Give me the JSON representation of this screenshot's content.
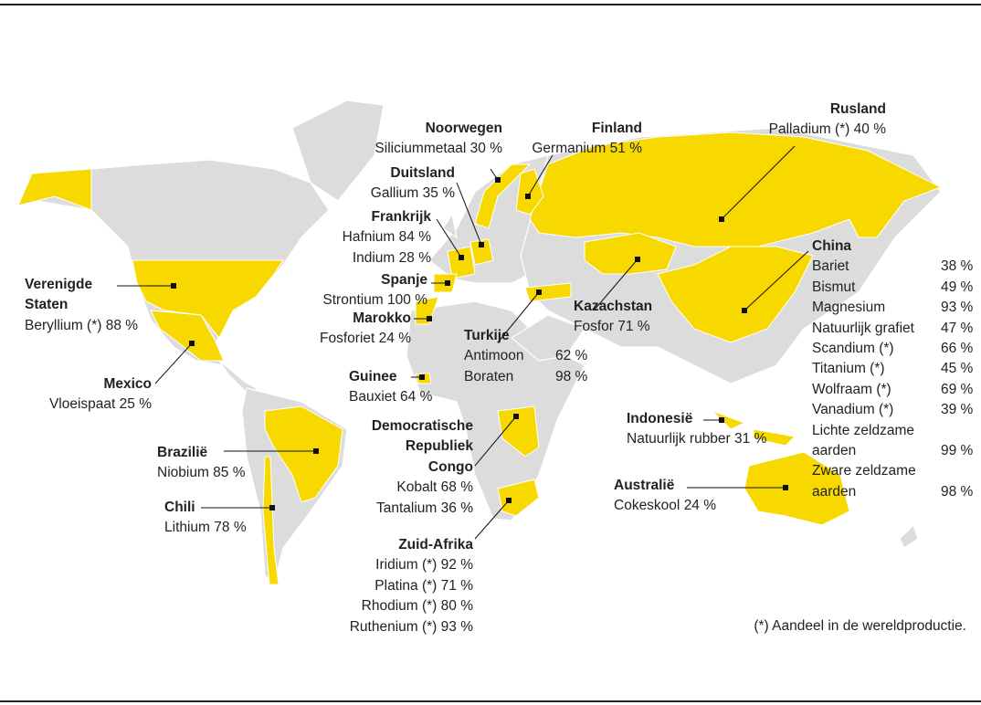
{
  "countries": [
    {
      "name": "Noorwegen",
      "items": [
        {
          "material": "Siliciummetaal",
          "share": "30 %"
        }
      ]
    },
    {
      "name": "Finland",
      "items": [
        {
          "material": "Germanium",
          "share": "51 %"
        }
      ]
    },
    {
      "name": "Rusland",
      "items": [
        {
          "material": "Palladium (*)",
          "share": "40 %"
        }
      ]
    },
    {
      "name": "Duitsland",
      "items": [
        {
          "material": "Gallium",
          "share": "35 %"
        }
      ]
    },
    {
      "name": "Frankrijk",
      "items": [
        {
          "material": "Hafnium",
          "share": "84 %"
        },
        {
          "material": "Indium",
          "share": "28 %"
        }
      ]
    },
    {
      "name": "Spanje",
      "items": [
        {
          "material": "Strontium",
          "share": "100 %"
        }
      ]
    },
    {
      "name": "Marokko",
      "items": [
        {
          "material": "Fosforiet",
          "share": "24 %"
        }
      ]
    },
    {
      "name": "Verenigde Staten",
      "items": [
        {
          "material": "Beryllium (*)",
          "share": "88 %"
        }
      ]
    },
    {
      "name": "Mexico",
      "items": [
        {
          "material": "Vloeispaat",
          "share": "25 %"
        }
      ]
    },
    {
      "name": "Guinee",
      "items": [
        {
          "material": "Bauxiet",
          "share": "64 %"
        }
      ]
    },
    {
      "name": "Turkije",
      "items": [
        {
          "material": "Antimoon",
          "share": "62 %"
        },
        {
          "material": "Boraten",
          "share": "98 %"
        }
      ]
    },
    {
      "name": "Kazachstan",
      "items": [
        {
          "material": "Fosfor",
          "share": "71 %"
        }
      ]
    },
    {
      "name": "China",
      "items": [
        {
          "material": "Bariet",
          "share": "38 %"
        },
        {
          "material": "Bismut",
          "share": "49 %"
        },
        {
          "material": "Magnesium",
          "share": "93 %"
        },
        {
          "material": "Natuurlijk grafiet",
          "share": "47 %"
        },
        {
          "material": "Scandium (*)",
          "share": "66 %"
        },
        {
          "material": "Titanium (*)",
          "share": "45 %"
        },
        {
          "material": "Wolfraam (*)",
          "share": "69 %"
        },
        {
          "material": "Vanadium (*)",
          "share": "39 %"
        },
        {
          "material": "Lichte zeldzame aarden",
          "share": "99 %"
        },
        {
          "material": "Zware zeldzame aarden",
          "share": "98 %"
        }
      ]
    },
    {
      "name": "Indonesië",
      "items": [
        {
          "material": "Natuurlijk rubber",
          "share": "31 %"
        }
      ]
    },
    {
      "name": "Australië",
      "items": [
        {
          "material": "Cokeskool",
          "share": "24 %"
        }
      ]
    },
    {
      "name": "Brazilië",
      "items": [
        {
          "material": "Niobium",
          "share": "85 %"
        }
      ]
    },
    {
      "name": "Chili",
      "items": [
        {
          "material": "Lithium",
          "share": "78 %"
        }
      ]
    },
    {
      "name": "Democratische Republiek Congo",
      "items": [
        {
          "material": "Kobalt",
          "share": "68 %"
        },
        {
          "material": "Tantalium",
          "share": "36 %"
        }
      ]
    },
    {
      "name": "Zuid-Afrika",
      "items": [
        {
          "material": "Iridium (*)",
          "share": "92 %"
        },
        {
          "material": "Platina (*)",
          "share": "71 %"
        },
        {
          "material": "Rhodium (*)",
          "share": "80 %"
        },
        {
          "material": "Ruthenium (*)",
          "share": "93 %"
        }
      ]
    }
  ],
  "footnote": "(*) Aandeel in de wereldproductie."
}
